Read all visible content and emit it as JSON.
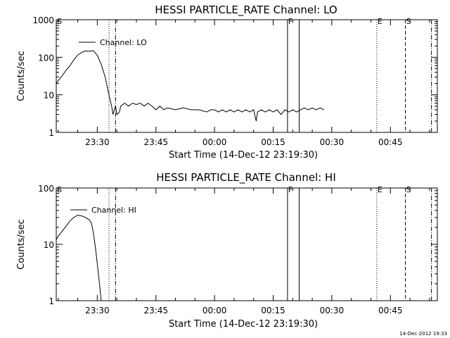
{
  "chart_data": [
    {
      "type": "line",
      "title": "HESSI PARTICLE_RATE Channel: LO",
      "xlabel": "Start Time (14-Dec-12 23:19:30)",
      "ylabel": "Counts/sec",
      "x_units": "time (HH:MM, 14-15 Dec 2012)",
      "xlim": [
        "23:19:30",
        "00:57:00"
      ],
      "ylim": [
        1,
        1000
      ],
      "yscale": "log",
      "xticks": [
        "23:30",
        "23:45",
        "00:00",
        "00:15",
        "00:30",
        "00:45"
      ],
      "yticks": [
        "1",
        "10",
        "100",
        "1000"
      ],
      "grid": false,
      "legend": "top-left",
      "series": [
        {
          "name": "Channel: LO",
          "style": "solid",
          "points": [
            [
              "23:19:30",
              20
            ],
            [
              "23:20:00",
              24
            ],
            [
              "23:21:00",
              32
            ],
            [
              "23:22:00",
              45
            ],
            [
              "23:23:00",
              60
            ],
            [
              "23:24:00",
              85
            ],
            [
              "23:25:00",
              115
            ],
            [
              "23:26:00",
              135
            ],
            [
              "23:27:00",
              148
            ],
            [
              "23:28:00",
              145
            ],
            [
              "23:29:00",
              150
            ],
            [
              "23:30:00",
              112
            ],
            [
              "23:31:00",
              65
            ],
            [
              "23:32:00",
              30
            ],
            [
              "23:33:00",
              10
            ],
            [
              "23:33:40",
              5
            ],
            [
              "23:34:00",
              3
            ],
            [
              "23:34:40",
              5
            ],
            [
              "23:35:00",
              3
            ],
            [
              "23:35:40",
              3.5
            ],
            [
              "23:36:00",
              5
            ],
            [
              "23:37:00",
              6
            ],
            [
              "23:38:00",
              5
            ],
            [
              "23:39:00",
              6
            ],
            [
              "23:40:00",
              5.5
            ],
            [
              "23:41:00",
              6
            ],
            [
              "23:42:00",
              5
            ],
            [
              "23:43:00",
              6
            ],
            [
              "23:44:00",
              5
            ],
            [
              "23:45:00",
              4
            ],
            [
              "23:46:00",
              5
            ],
            [
              "23:47:00",
              4
            ],
            [
              "23:48:00",
              4.5
            ],
            [
              "23:50:00",
              4
            ],
            [
              "23:52:00",
              4.5
            ],
            [
              "23:54:00",
              4
            ],
            [
              "23:56:00",
              4
            ],
            [
              "23:58:00",
              3.5
            ],
            [
              "23:59:00",
              4
            ],
            [
              "00:00:00",
              4
            ],
            [
              "00:01:00",
              3.5
            ],
            [
              "00:02:00",
              4
            ],
            [
              "00:03:00",
              3.5
            ],
            [
              "00:04:00",
              4
            ],
            [
              "00:05:00",
              3.5
            ],
            [
              "00:06:00",
              4
            ],
            [
              "00:07:00",
              3.5
            ],
            [
              "00:08:00",
              4
            ],
            [
              "00:09:00",
              3.5
            ],
            [
              "00:10:00",
              4
            ],
            [
              "00:10:40",
              2
            ],
            [
              "00:11:00",
              3.5
            ],
            [
              "00:12:00",
              4
            ],
            [
              "00:13:00",
              3.5
            ],
            [
              "00:14:00",
              4
            ],
            [
              "00:15:00",
              3.5
            ],
            [
              "00:16:00",
              4
            ],
            [
              "00:17:00",
              3
            ],
            [
              "00:18:00",
              4
            ],
            [
              "00:19:00",
              3.5
            ],
            [
              "00:20:00",
              4
            ],
            [
              "00:21:00",
              3.5
            ],
            [
              "00:22:00",
              4
            ],
            [
              "00:23:00",
              4.5
            ],
            [
              "00:24:00",
              4
            ],
            [
              "00:25:00",
              4.5
            ],
            [
              "00:26:00",
              4
            ],
            [
              "00:27:00",
              4.5
            ],
            [
              "00:28:00",
              4
            ]
          ]
        }
      ],
      "markers": [
        {
          "label": "S",
          "time": "23:19:30",
          "style": "solid"
        },
        {
          "label": "",
          "time": "23:33:00",
          "style": "dotted"
        },
        {
          "label": "",
          "time": "23:34:40",
          "style": "dashdot"
        },
        {
          "label": "F",
          "time": "00:18:40",
          "style": "solid"
        },
        {
          "label": "",
          "time": "00:21:40",
          "style": "solid"
        },
        {
          "label": "E",
          "time": "00:41:30",
          "style": "dotted"
        },
        {
          "label": "S",
          "time": "00:48:50",
          "style": "dashed"
        },
        {
          "label": "",
          "time": "00:55:30",
          "style": "dashdot"
        }
      ]
    },
    {
      "type": "line",
      "title": "HESSI PARTICLE_RATE Channel: HI",
      "xlabel": "Start Time (14-Dec-12 23:19:30)",
      "ylabel": "Counts/sec",
      "x_units": "time (HH:MM, 14-15 Dec 2012)",
      "xlim": [
        "23:19:30",
        "00:57:00"
      ],
      "ylim": [
        1,
        100
      ],
      "yscale": "log",
      "xticks": [
        "23:30",
        "23:45",
        "00:00",
        "00:15",
        "00:30",
        "00:45"
      ],
      "yticks": [
        "1",
        "10",
        "100"
      ],
      "grid": false,
      "legend": "top-left",
      "series": [
        {
          "name": "Channel: HI",
          "style": "solid",
          "points": [
            [
              "23:19:30",
              12
            ],
            [
              "23:20:00",
              14
            ],
            [
              "23:21:00",
              17
            ],
            [
              "23:22:00",
              21
            ],
            [
              "23:23:00",
              26
            ],
            [
              "23:24:00",
              30
            ],
            [
              "23:25:00",
              33
            ],
            [
              "23:26:00",
              32
            ],
            [
              "23:27:00",
              30
            ],
            [
              "23:28:00",
              27
            ],
            [
              "23:28:30",
              24
            ],
            [
              "23:29:00",
              16
            ],
            [
              "23:29:30",
              9
            ],
            [
              "23:30:00",
              4.5
            ],
            [
              "23:30:30",
              2.2
            ],
            [
              "23:31:00",
              1
            ]
          ]
        }
      ],
      "markers": [
        {
          "label": "S",
          "time": "23:19:30",
          "style": "solid"
        },
        {
          "label": "",
          "time": "23:33:00",
          "style": "dotted"
        },
        {
          "label": "",
          "time": "23:34:40",
          "style": "dashdot"
        },
        {
          "label": "F",
          "time": "00:18:40",
          "style": "solid"
        },
        {
          "label": "",
          "time": "00:21:40",
          "style": "solid"
        },
        {
          "label": "E",
          "time": "00:41:30",
          "style": "dotted"
        },
        {
          "label": "S",
          "time": "00:48:50",
          "style": "dashed"
        },
        {
          "label": "",
          "time": "00:55:30",
          "style": "dashdot"
        }
      ]
    }
  ],
  "footer": {
    "timestamp": "14-Dec-2012 19:33"
  }
}
